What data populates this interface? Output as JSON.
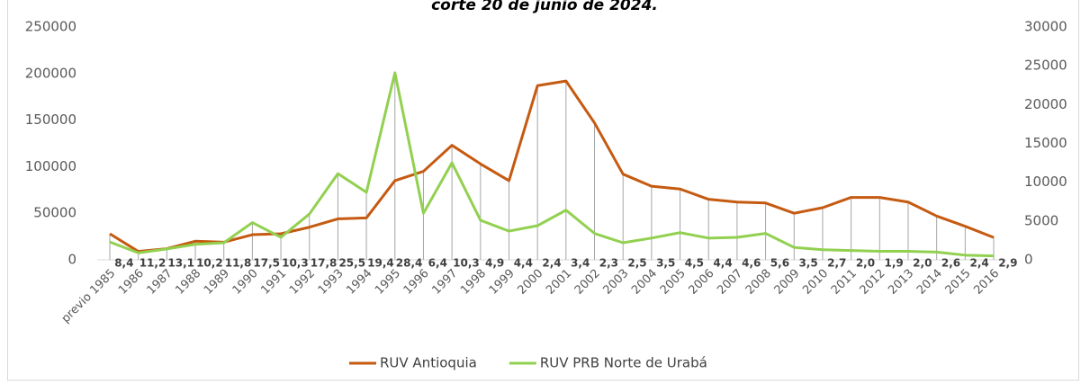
{
  "chart_data": {
    "type": "line",
    "title": "corte 20 de junio de 2024.",
    "categories": [
      "previo 1985",
      "1986",
      "1987",
      "1988",
      "1989",
      "1990",
      "1991",
      "1992",
      "1993",
      "1994",
      "1995",
      "1996",
      "1997",
      "1998",
      "1999",
      "2000",
      "2001",
      "2002",
      "2003",
      "2004",
      "2005",
      "2006",
      "2007",
      "2008",
      "2009",
      "2010",
      "2011",
      "2012",
      "2013",
      "2014",
      "2015",
      "2016"
    ],
    "series": [
      {
        "name": "RUV Antioquia",
        "color": "#c55a11",
        "axis": "y",
        "values": [
          28000,
          9000,
          12000,
          20000,
          19000,
          27000,
          28000,
          35000,
          44000,
          45000,
          85000,
          95000,
          123000,
          103000,
          85000,
          187000,
          192000,
          147000,
          92000,
          79000,
          76000,
          65000,
          62000,
          61000,
          50000,
          56000,
          67000,
          67000,
          62000,
          47000,
          36000,
          24000
        ]
      },
      {
        "name": "RUV PRB Norte de Urabá",
        "color": "#92d050",
        "axis": "y2",
        "values": [
          2300,
          900,
          1400,
          2000,
          2200,
          4800,
          2900,
          5900,
          11100,
          8700,
          24100,
          6000,
          12500,
          5100,
          3700,
          4400,
          6400,
          3400,
          2200,
          2800,
          3500,
          2800,
          2900,
          3400,
          1600,
          1300,
          1200,
          1100,
          1100,
          1000,
          600,
          500
        ]
      }
    ],
    "percent_labels": {
      "values": [
        8.4,
        11.2,
        13.1,
        10.2,
        11.8,
        17.5,
        10.3,
        17.8,
        25.5,
        19.4,
        28.4,
        6.4,
        10.3,
        4.9,
        4.4,
        2.4,
        3.4,
        2.3,
        2.5,
        3.5,
        4.5,
        4.4,
        4.6,
        5.6,
        3.5,
        2.7,
        2.0,
        1.9,
        2.0,
        2.6,
        2.4,
        2.9
      ],
      "value_labels": [
        "8,4",
        "11,2",
        "13,1",
        "10,2",
        "11,8",
        "17,5",
        "10,3",
        "17,8",
        "25,5",
        "19,4",
        "28,4",
        "6,4",
        "10,3",
        "4,9",
        "4,4",
        "2,4",
        "3,4",
        "2,3",
        "2,5",
        "3,5",
        "4,5",
        "4,4",
        "4,6",
        "5,6",
        "3,5",
        "2,7",
        "2,0",
        "1,9",
        "2,0",
        "2,6",
        "2,4",
        "2,9"
      ]
    },
    "ylim": [
      0,
      250000
    ],
    "yticks": [
      0,
      50000,
      100000,
      150000,
      200000,
      250000
    ],
    "y2lim": [
      0,
      30000
    ],
    "y2ticks": [
      0,
      5000,
      10000,
      15000,
      20000,
      25000,
      30000
    ],
    "drop_lines": true,
    "legend": "bottom"
  }
}
